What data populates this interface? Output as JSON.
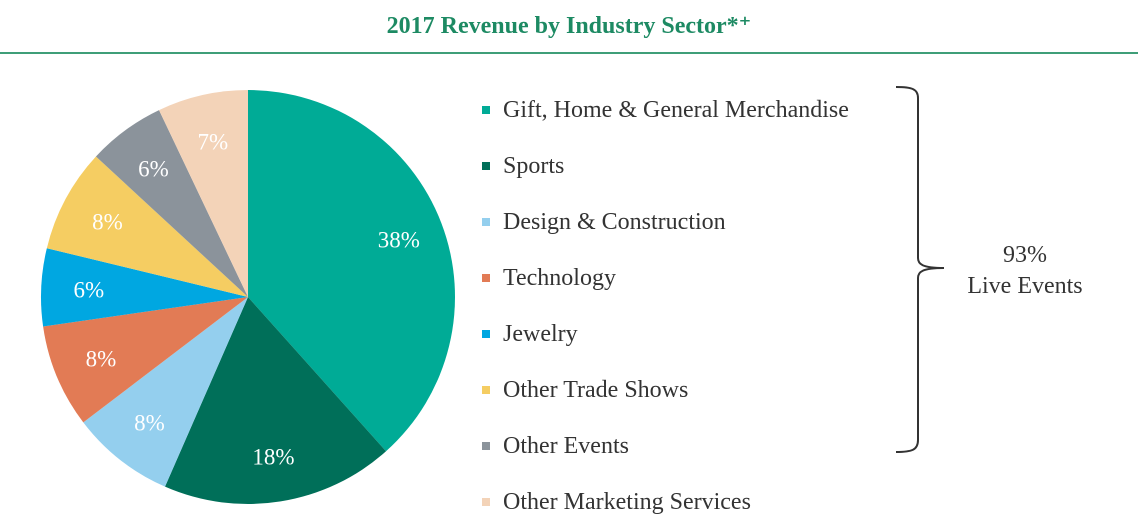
{
  "chart_data": {
    "type": "pie",
    "title": "2017 Revenue by Industry Sector*⁺",
    "slices": [
      {
        "label": "Gift, Home & General Merchandise",
        "value": 38,
        "display": "38%",
        "color": "#00ab96"
      },
      {
        "label": "Sports",
        "value": 18,
        "display": "18%",
        "color": "#006f59"
      },
      {
        "label": "Design & Construction",
        "value": 8,
        "display": "8%",
        "color": "#94cfee"
      },
      {
        "label": "Technology",
        "value": 8,
        "display": "8%",
        "color": "#e27b55"
      },
      {
        "label": "Jewelry",
        "value": 6,
        "display": "6%",
        "color": "#00a7e1"
      },
      {
        "label": "Other Trade Shows",
        "value": 8,
        "display": "8%",
        "color": "#f5cd62"
      },
      {
        "label": "Other Events",
        "value": 6,
        "display": "6%",
        "color": "#8b939b"
      },
      {
        "label": "Other Marketing Services",
        "value": 7,
        "display": "7%",
        "color": "#f3d3b8"
      }
    ],
    "legend_position": "right",
    "annotation": {
      "value": "93%",
      "label": "Live Events"
    }
  }
}
